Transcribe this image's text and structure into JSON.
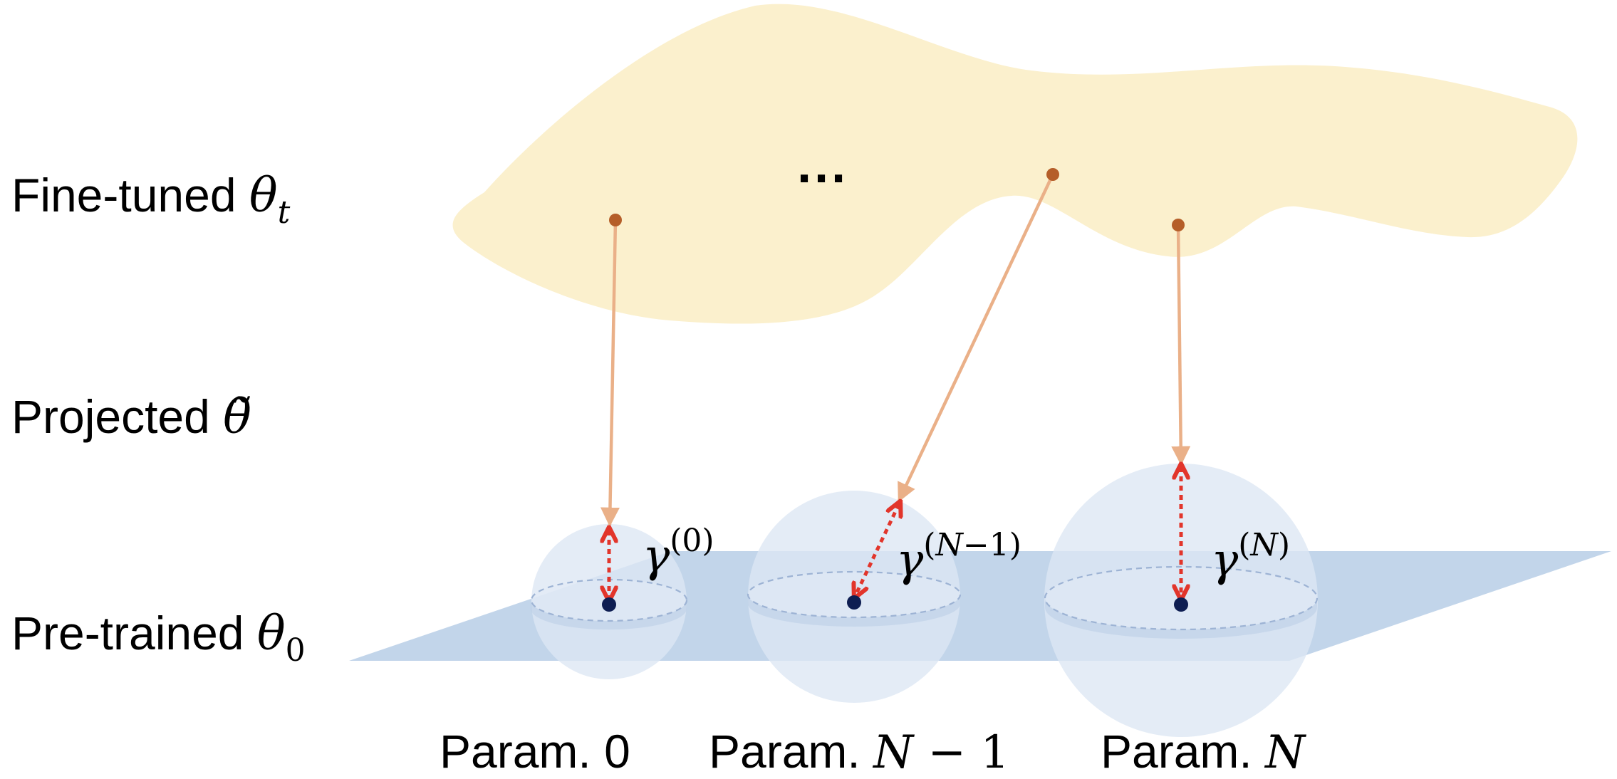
{
  "rows": {
    "fine_tuned": {
      "text": "Fine-tuned ",
      "symbol": "θ",
      "sub": "t"
    },
    "projected": {
      "text": "Projected ",
      "symbol": "θ̃"
    },
    "pre_trained": {
      "text": "Pre-trained ",
      "symbol": "θ",
      "sub": "0"
    }
  },
  "ellipsis": "···",
  "params": [
    {
      "prefix": "Param. ",
      "value": "0",
      "value_italic": false
    },
    {
      "prefix": "Param. ",
      "value": "N",
      "value_suffix": " − 1",
      "value_italic": true
    },
    {
      "prefix": "Param. ",
      "value": "N",
      "value_suffix": "",
      "value_italic": true
    }
  ],
  "radii": [
    {
      "symbol": "γ",
      "open": "(",
      "inner": "0",
      "inner_italic": false,
      "tail": "",
      "close": ")"
    },
    {
      "symbol": "γ",
      "open": "(",
      "inner": "N",
      "inner_italic": true,
      "tail": "−1",
      "close": ")"
    },
    {
      "symbol": "γ",
      "open": "(",
      "inner": "N",
      "inner_italic": true,
      "tail": "",
      "close": ")"
    }
  ],
  "colors": {
    "fine_tuned_region": "#fbf0cd",
    "plane": "#c2d5ea",
    "sphere": "#dde7f4",
    "fine_tuned_point": "#b55e29",
    "projection_arrow": "#eab088",
    "radius_arrow": "#e2352b",
    "pretrained_point": "#0e1e52"
  }
}
